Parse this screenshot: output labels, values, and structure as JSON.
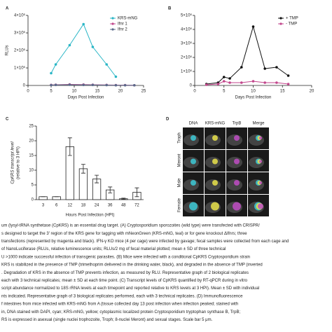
{
  "chart_data": [
    {
      "type": "line",
      "panel_label": "A",
      "xlabel": "Days Post Infection",
      "ylabel": "RLUs",
      "xlim": [
        0,
        25
      ],
      "xticks": [
        0,
        5,
        10,
        15,
        20,
        25
      ],
      "ylim": [
        0,
        4000000
      ],
      "yticks": [
        0,
        {
          "value": 1000000,
          "label": "1×10⁶"
        },
        {
          "value": 2000000,
          "label": "2×10⁶"
        },
        {
          "value": 3000000,
          "label": "3×10⁶"
        },
        {
          "value": 4000000,
          "label": "4×10⁶"
        }
      ],
      "legend": "upper right",
      "series": [
        {
          "name": "KRS-mNG",
          "color": "#2ab6c6",
          "x": [
            5,
            6,
            9,
            12,
            14,
            17,
            19
          ],
          "values": [
            700000,
            1200000,
            2300000,
            3500000,
            2200000,
            1200000,
            500000
          ]
        },
        {
          "name": "Ifnr 1",
          "color": "#c2468c",
          "x": [
            5,
            6,
            9,
            12,
            14,
            17,
            19,
            21,
            23
          ],
          "values": [
            30000,
            40000,
            60000,
            50000,
            40000,
            30000,
            20000,
            20000,
            10000
          ]
        },
        {
          "name": "Ifnr 2",
          "color": "#5a6a8a",
          "x": [
            5,
            6,
            9,
            12,
            14,
            17,
            19,
            21,
            23
          ],
          "values": [
            20000,
            30000,
            40000,
            30000,
            30000,
            20000,
            10000,
            10000,
            10000
          ]
        }
      ]
    },
    {
      "type": "line",
      "panel_label": "B",
      "xlabel": "Days Post Infection",
      "xlim": [
        0,
        20
      ],
      "xticks": [
        0,
        5,
        10,
        15,
        20
      ],
      "ylim": [
        0,
        5000000
      ],
      "yticks": [
        0,
        {
          "value": 1000000,
          "label": "1×10⁶"
        },
        {
          "value": 2000000,
          "label": "2×10⁶"
        },
        {
          "value": 3000000,
          "label": "3×10⁶"
        },
        {
          "value": 4000000,
          "label": "4×10⁶"
        },
        {
          "value": 5000000,
          "label": "5×10⁶"
        }
      ],
      "legend": "upper right",
      "series": [
        {
          "name": "+ TMP",
          "color": "#111111",
          "x": [
            2,
            4,
            5,
            6,
            8,
            10,
            12,
            14,
            16
          ],
          "values": [
            100000,
            200000,
            600000,
            500000,
            1300000,
            4200000,
            1200000,
            1300000,
            700000
          ]
        },
        {
          "name": "- TMP",
          "color": "#c2468c",
          "x": [
            2,
            4,
            5,
            6,
            8,
            10,
            12,
            14,
            16
          ],
          "values": [
            50000,
            100000,
            300000,
            200000,
            200000,
            300000,
            200000,
            200000,
            100000
          ]
        }
      ]
    },
    {
      "type": "bar",
      "panel_label": "C",
      "xlabel": "Hours Post Infection (HPI)",
      "ylabel": [
        "CpKRS transcript level",
        "(relative to 3 HPI)"
      ],
      "categories": [
        "3",
        "6",
        "12",
        "18",
        "24",
        "36",
        "48",
        "72"
      ],
      "values": [
        1,
        1,
        18,
        10.5,
        7,
        3.3,
        0.3,
        2.5
      ],
      "errors": [
        0,
        0,
        3,
        1.5,
        1.3,
        1,
        0.2,
        1.5
      ],
      "color": "#ffffff",
      "ylim": [
        0,
        25
      ],
      "yticks": [
        0,
        5,
        10,
        15,
        20,
        25
      ]
    }
  ],
  "figure_d": {
    "panel_label": "D",
    "columns": [
      "DNA",
      "KRS-mNG",
      "TrpB",
      "Merge"
    ],
    "rows": [
      "Troph",
      "Meront",
      "Male",
      "Female"
    ]
  },
  "caption": [
    "um (lysyl-tRNA synthetase (CpKRS) is an essential drug target. (A) Cryptosporidium sporozoites (wild type) were transfected with CRISPR/",
    "s designed to target the 3′ region of the KRS gene for tagging with mNeonGreen (KRS-mNG, teal) or for gene knockout ΔIfnrs; three",
    "transfections (represented by magenta and black). IFN-γ KO mice (4 per cage) were infected by gavage; fecal samples were collected from each cage and",
    "of NanoLuciferase (RLUs, relative luminescence units; RLUs/2 mg of fecal material plotted; mean ± SD of three technical",
    "U >1000 indicate successful infection of transgenic parasites. (B) Mice were infected with a conditional CpKRS Cryptosporidium strain",
    "KRS is stabilized in the presence of TMP (trimethoprim delivered in the drinking water, black), and degraded in the absence of TMP (inverted",
    ". Degradation of KRS in the absence of TMP prevents infection, as measured by RLU. Representative graph of 2 biological replicates",
    "each with 3 technical replicates; mean ± SD at each time point. (C) Transcript levels of CpKRS quantified by RT-qPCR during in vitro",
    "script abundance normalized to 18S rRNA levels at each timepoint and reported relative to KRS levels at 3 HPI). Mean ± SD with individual",
    "nts indicated. Representative graph of 3 biological replicates performed, each with 3 technical replicates. (D) Immunofluorescence",
    "f intestines from mice infected with KRS-mNG from A (tissue collected day 13 post infection when infection peaked; stained with",
    "in, DNA stained with DAPI, cyan; KRS-mNG, yellow; cytoplasmic localized protein Cryptosporidium tryptophan synthase B, TrpB;",
    "RS is expressed in asexual (single nuclei trophozoite, Troph; 8-nuclei Meront) and sexual stages. Scale bar 5 μm."
  ]
}
